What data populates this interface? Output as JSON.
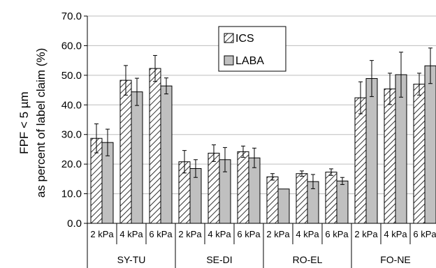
{
  "chart_data": {
    "type": "bar",
    "ylabel_line1": "FPF < 5 µm",
    "ylabel_line2": "as percent of label claim (%)",
    "ylim": [
      0,
      70
    ],
    "yticks": [
      "0.0",
      "10.0",
      "20.0",
      "30.0",
      "40.0",
      "50.0",
      "60.0",
      "70.0"
    ],
    "groups": [
      "SY-TU",
      "SE-DI",
      "RO-EL",
      "FO-NE"
    ],
    "subcategories": [
      "2 kPa",
      "4 kPa",
      "6 kPa"
    ],
    "legend_position": "top-center",
    "grid": "horizontal",
    "series": [
      {
        "name": "ICS",
        "pattern": "hatched",
        "values": [
          28.7,
          48.3,
          52.3,
          20.8,
          23.7,
          24.2,
          15.7,
          16.8,
          17.3,
          42.4,
          45.4,
          47.0
        ],
        "errors": [
          4.9,
          5.0,
          4.4,
          3.8,
          2.8,
          1.9,
          1.1,
          0.9,
          1.1,
          5.4,
          5.3,
          3.7
        ]
      },
      {
        "name": "LABA",
        "pattern": "solid-gray",
        "values": [
          27.3,
          44.4,
          46.4,
          18.5,
          21.5,
          22.1,
          11.6,
          14.1,
          14.3,
          48.9,
          50.2,
          53.2
        ],
        "errors": [
          4.5,
          4.6,
          2.7,
          3.0,
          4.1,
          3.3,
          0.0,
          2.4,
          1.2,
          6.1,
          7.6,
          6.0
        ]
      }
    ]
  }
}
